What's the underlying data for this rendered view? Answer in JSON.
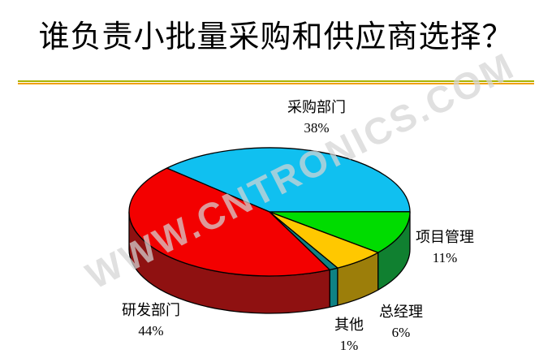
{
  "title": "谁负责小批量采购和供应商选择？",
  "watermark": "WWW.CNTRONICS.COM",
  "divider_colors": {
    "top": "#A9B400",
    "bottom": "#F0A000"
  },
  "chart_data": {
    "type": "pie",
    "style": "3d",
    "title": "谁负责小批量采购和供应商选择？",
    "start_angle_deg": 137,
    "direction": "clockwise",
    "legend": "none",
    "slices": [
      {
        "label": "采购部门",
        "value": 38,
        "pct_label": "38%",
        "color": "#10C0F0",
        "side_color": "#0A86B4"
      },
      {
        "label": "项目管理",
        "value": 11,
        "pct_label": "11%",
        "color": "#00DC00",
        "side_color": "#108030"
      },
      {
        "label": "总经理",
        "value": 6,
        "pct_label": "6%",
        "color": "#FFC800",
        "side_color": "#9C7E0A"
      },
      {
        "label": "其他",
        "value": 1,
        "pct_label": "1%",
        "color": "#0F8284",
        "side_color": "#0F8284"
      },
      {
        "label": "研发部门",
        "value": 44,
        "pct_label": "44%",
        "color": "#F30000",
        "side_color": "#8F1111"
      }
    ]
  }
}
